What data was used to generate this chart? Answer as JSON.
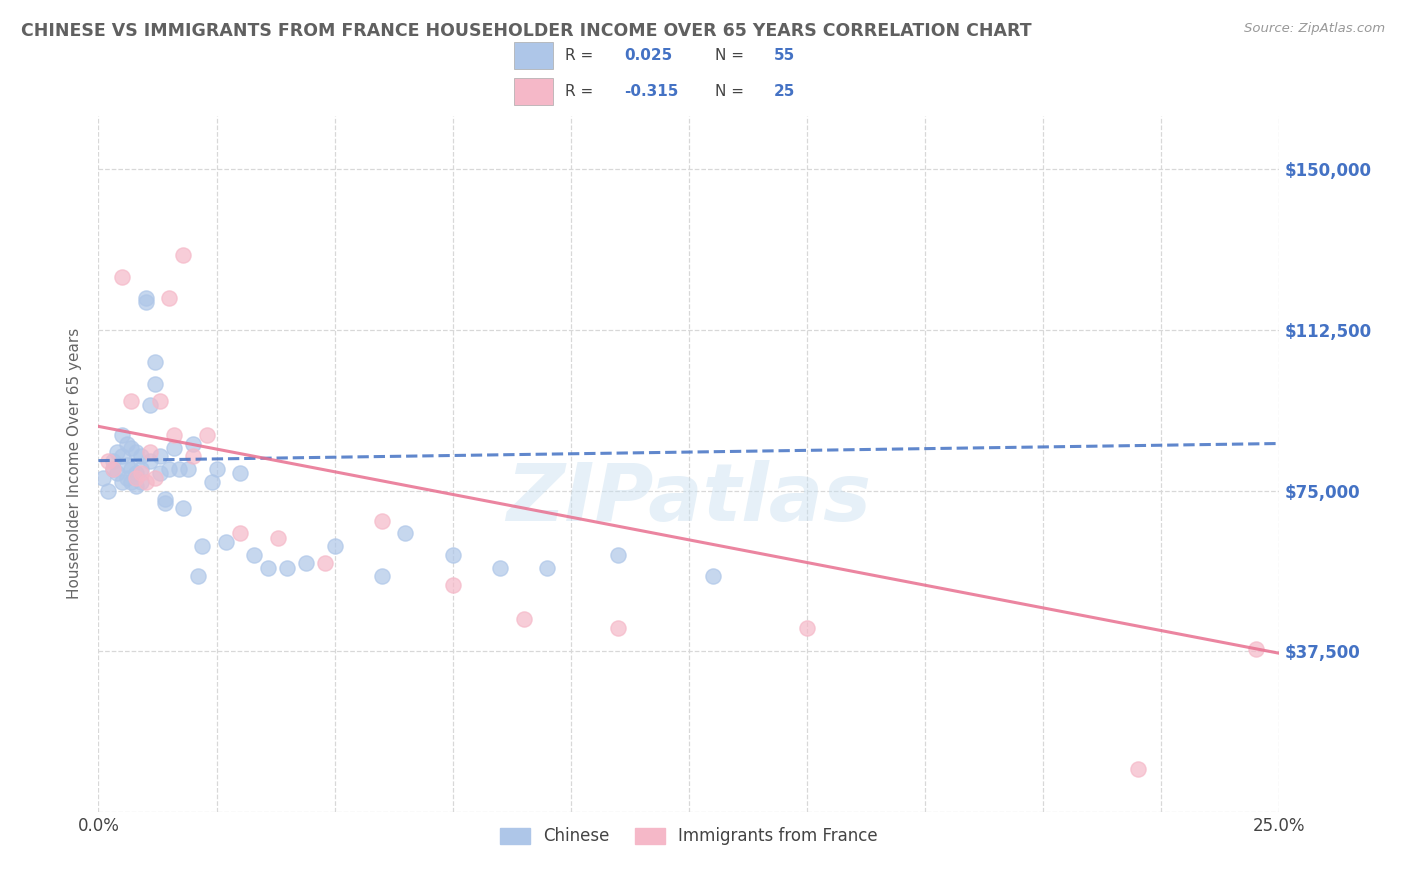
{
  "title": "CHINESE VS IMMIGRANTS FROM FRANCE HOUSEHOLDER INCOME OVER 65 YEARS CORRELATION CHART",
  "source": "Source: ZipAtlas.com",
  "ylabel": "Householder Income Over 65 years",
  "xlim": [
    0.0,
    0.25
  ],
  "ylim": [
    0,
    162500
  ],
  "xticks": [
    0.0,
    0.025,
    0.05,
    0.075,
    0.1,
    0.125,
    0.15,
    0.175,
    0.2,
    0.225,
    0.25
  ],
  "xtick_labels": [
    "0.0%",
    "",
    "",
    "",
    "",
    "",
    "",
    "",
    "",
    "",
    "25.0%"
  ],
  "ytick_positions": [
    0,
    37500,
    75000,
    112500,
    150000
  ],
  "ytick_labels": [
    "",
    "$37,500",
    "$75,000",
    "$112,500",
    "$150,000"
  ],
  "watermark": "ZIPatlas",
  "blue_R": "0.025",
  "blue_N": "55",
  "pink_R": "-0.315",
  "pink_N": "25",
  "blue_scatter_color": "#aec6e8",
  "pink_scatter_color": "#f5b8c8",
  "blue_line_color": "#4472c4",
  "pink_line_color": "#e87090",
  "axis_tick_color": "#4472c4",
  "title_color": "#606060",
  "legend_R_N_color": "#4472c4",
  "blue_x": [
    0.001,
    0.002,
    0.003,
    0.003,
    0.004,
    0.004,
    0.005,
    0.005,
    0.005,
    0.006,
    0.006,
    0.006,
    0.007,
    0.007,
    0.007,
    0.008,
    0.008,
    0.008,
    0.009,
    0.009,
    0.009,
    0.01,
    0.01,
    0.011,
    0.011,
    0.012,
    0.012,
    0.013,
    0.013,
    0.014,
    0.014,
    0.015,
    0.016,
    0.017,
    0.018,
    0.019,
    0.02,
    0.021,
    0.022,
    0.024,
    0.025,
    0.027,
    0.03,
    0.033,
    0.036,
    0.04,
    0.044,
    0.05,
    0.06,
    0.065,
    0.075,
    0.085,
    0.095,
    0.11,
    0.13
  ],
  "blue_y": [
    78000,
    75000,
    82000,
    80000,
    79000,
    84000,
    88000,
    77000,
    83000,
    86000,
    78000,
    81000,
    85000,
    80000,
    77000,
    84000,
    79000,
    76000,
    83000,
    80000,
    77000,
    120000,
    119000,
    95000,
    82000,
    105000,
    100000,
    83000,
    79000,
    73000,
    72000,
    80000,
    85000,
    80000,
    71000,
    80000,
    86000,
    55000,
    62000,
    77000,
    80000,
    63000,
    79000,
    60000,
    57000,
    57000,
    58000,
    62000,
    55000,
    65000,
    60000,
    57000,
    57000,
    60000,
    55000
  ],
  "pink_x": [
    0.002,
    0.003,
    0.005,
    0.007,
    0.008,
    0.009,
    0.01,
    0.011,
    0.012,
    0.013,
    0.015,
    0.016,
    0.018,
    0.02,
    0.023,
    0.03,
    0.038,
    0.048,
    0.06,
    0.075,
    0.09,
    0.11,
    0.15,
    0.22,
    0.245
  ],
  "pink_y": [
    82000,
    80000,
    125000,
    96000,
    78000,
    79000,
    77000,
    84000,
    78000,
    96000,
    120000,
    88000,
    130000,
    83000,
    88000,
    65000,
    64000,
    58000,
    68000,
    53000,
    45000,
    43000,
    43000,
    10000,
    38000
  ],
  "blue_line_y0": 82000,
  "blue_line_y1": 86000,
  "pink_line_y0": 90000,
  "pink_line_y1": 37000,
  "grid_color": "#d8d8d8",
  "background_color": "#ffffff",
  "fig_width": 14.06,
  "fig_height": 8.92
}
